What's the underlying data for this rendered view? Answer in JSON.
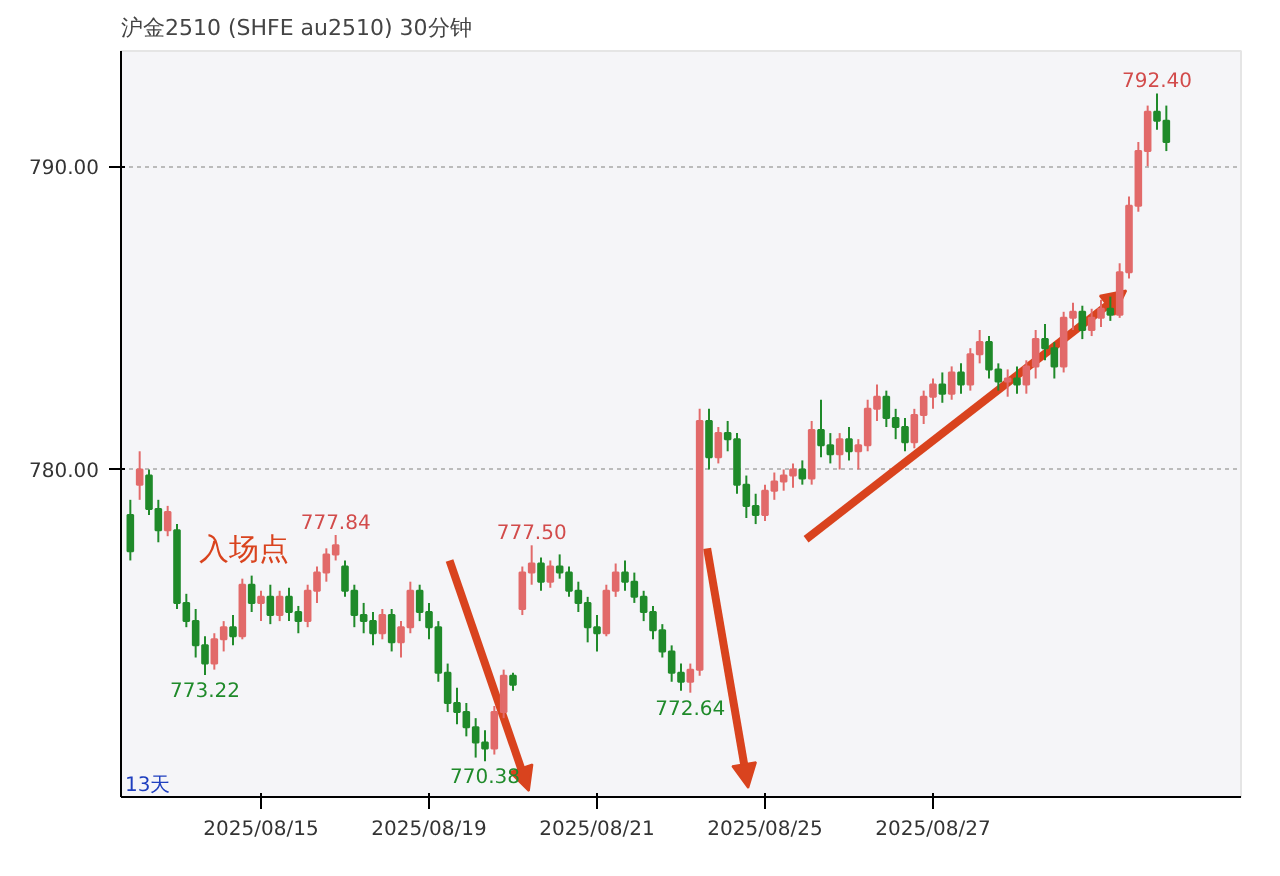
{
  "chart_data": {
    "type": "candlestick",
    "title": "沪金2510 (SHFE au2510) 30分钟",
    "categories": [
      null,
      null,
      null,
      null,
      null,
      null,
      null,
      null,
      null,
      null,
      null,
      null,
      null,
      null,
      "2025/08/15",
      null,
      null,
      null,
      null,
      null,
      null,
      null,
      null,
      null,
      null,
      null,
      null,
      null,
      null,
      null,
      null,
      null,
      "2025/08/19",
      null,
      null,
      null,
      null,
      null,
      null,
      null,
      null,
      null,
      null,
      null,
      null,
      null,
      null,
      null,
      null,
      null,
      "2025/08/21",
      null,
      null,
      null,
      null,
      null,
      null,
      null,
      null,
      null,
      null,
      null,
      null,
      null,
      null,
      null,
      null,
      null,
      "2025/08/25",
      null,
      null,
      null,
      null,
      null,
      null,
      null,
      null,
      null,
      null,
      null,
      null,
      null,
      null,
      null,
      null,
      null,
      "2025/08/27",
      null,
      null,
      null,
      null,
      null,
      null,
      null,
      null,
      null,
      null,
      null,
      null,
      null,
      null,
      null,
      null,
      null,
      null,
      null,
      null,
      null,
      null,
      null,
      null,
      null
    ],
    "ohlc": [
      [
        778.5,
        779.0,
        777.0,
        777.3
      ],
      [
        779.5,
        780.6,
        779.0,
        780.0
      ],
      [
        779.8,
        780.0,
        778.5,
        778.7
      ],
      [
        778.7,
        779.0,
        777.6,
        778.0
      ],
      [
        778.0,
        778.8,
        777.8,
        778.6
      ],
      [
        778.0,
        778.2,
        775.4,
        775.6
      ],
      [
        775.6,
        775.9,
        774.8,
        775.0
      ],
      [
        775.0,
        775.4,
        773.8,
        774.2
      ],
      [
        774.2,
        774.5,
        773.22,
        773.6
      ],
      [
        773.6,
        774.6,
        773.4,
        774.4
      ],
      [
        774.4,
        775.0,
        774.0,
        774.8
      ],
      [
        774.8,
        775.2,
        774.2,
        774.5
      ],
      [
        774.5,
        776.4,
        774.4,
        776.2
      ],
      [
        776.2,
        776.5,
        775.3,
        775.6
      ],
      [
        775.6,
        776.0,
        775.0,
        775.8
      ],
      [
        775.8,
        776.2,
        774.9,
        775.2
      ],
      [
        775.2,
        776.0,
        775.0,
        775.8
      ],
      [
        775.8,
        776.1,
        775.0,
        775.3
      ],
      [
        775.3,
        775.5,
        774.6,
        775.0
      ],
      [
        775.0,
        776.2,
        774.8,
        776.0
      ],
      [
        776.0,
        776.8,
        775.6,
        776.6
      ],
      [
        776.6,
        777.4,
        776.3,
        777.2
      ],
      [
        777.2,
        777.84,
        777.0,
        777.5
      ],
      [
        776.8,
        777.0,
        775.8,
        776.0
      ],
      [
        776.0,
        776.2,
        774.8,
        775.2
      ],
      [
        775.2,
        775.6,
        774.6,
        775.0
      ],
      [
        775.0,
        775.3,
        774.2,
        774.6
      ],
      [
        774.6,
        775.4,
        774.4,
        775.2
      ],
      [
        775.2,
        775.4,
        774.0,
        774.3
      ],
      [
        774.3,
        775.0,
        773.8,
        774.8
      ],
      [
        774.8,
        776.3,
        774.6,
        776.0
      ],
      [
        776.0,
        776.2,
        775.0,
        775.3
      ],
      [
        775.3,
        775.6,
        774.4,
        774.8
      ],
      [
        774.8,
        775.0,
        773.0,
        773.3
      ],
      [
        773.3,
        773.6,
        772.0,
        772.3
      ],
      [
        772.3,
        772.8,
        771.6,
        772.0
      ],
      [
        772.0,
        772.3,
        771.2,
        771.5
      ],
      [
        771.5,
        771.8,
        770.5,
        771.0
      ],
      [
        771.0,
        771.4,
        770.38,
        770.8
      ],
      [
        770.8,
        772.2,
        770.6,
        772.0
      ],
      [
        772.0,
        773.4,
        771.8,
        773.2
      ],
      [
        773.2,
        773.3,
        772.7,
        772.9
      ],
      [
        775.4,
        776.8,
        775.2,
        776.6
      ],
      [
        776.6,
        777.5,
        776.2,
        776.9
      ],
      [
        776.9,
        777.1,
        776.0,
        776.3
      ],
      [
        776.3,
        777.0,
        776.1,
        776.8
      ],
      [
        776.8,
        777.2,
        776.4,
        776.6
      ],
      [
        776.6,
        776.8,
        775.8,
        776.0
      ],
      [
        776.0,
        776.3,
        775.3,
        775.6
      ],
      [
        775.6,
        775.8,
        774.3,
        774.8
      ],
      [
        774.8,
        775.2,
        774.0,
        774.6
      ],
      [
        774.6,
        776.2,
        774.5,
        776.0
      ],
      [
        776.0,
        776.9,
        775.8,
        776.6
      ],
      [
        776.6,
        777.0,
        776.0,
        776.3
      ],
      [
        776.3,
        776.6,
        775.6,
        775.8
      ],
      [
        775.8,
        776.0,
        775.0,
        775.3
      ],
      [
        775.3,
        775.5,
        774.4,
        774.7
      ],
      [
        774.7,
        774.9,
        773.8,
        774.0
      ],
      [
        774.0,
        774.2,
        773.0,
        773.3
      ],
      [
        773.3,
        773.6,
        772.7,
        773.0
      ],
      [
        773.0,
        773.6,
        772.64,
        773.4
      ],
      [
        773.4,
        782.0,
        773.2,
        781.6
      ],
      [
        781.6,
        782.0,
        780.0,
        780.4
      ],
      [
        780.4,
        781.4,
        780.2,
        781.2
      ],
      [
        781.2,
        781.6,
        780.6,
        781.0
      ],
      [
        781.0,
        781.2,
        779.2,
        779.5
      ],
      [
        779.5,
        779.8,
        778.4,
        778.8
      ],
      [
        778.8,
        779.2,
        778.2,
        778.5
      ],
      [
        778.5,
        779.5,
        778.3,
        779.3
      ],
      [
        779.3,
        779.9,
        779.0,
        779.6
      ],
      [
        779.6,
        780.0,
        779.3,
        779.8
      ],
      [
        779.8,
        780.2,
        779.4,
        780.0
      ],
      [
        780.0,
        780.3,
        779.5,
        779.7
      ],
      [
        779.7,
        781.6,
        779.5,
        781.3
      ],
      [
        781.3,
        782.3,
        780.4,
        780.8
      ],
      [
        780.8,
        781.2,
        780.2,
        780.5
      ],
      [
        780.5,
        781.2,
        780.0,
        781.0
      ],
      [
        781.0,
        781.4,
        780.3,
        780.6
      ],
      [
        780.6,
        781.0,
        780.0,
        780.8
      ],
      [
        780.8,
        782.3,
        780.6,
        782.0
      ],
      [
        782.0,
        782.8,
        781.6,
        782.4
      ],
      [
        782.4,
        782.6,
        781.4,
        781.7
      ],
      [
        781.7,
        782.0,
        781.0,
        781.4
      ],
      [
        781.4,
        781.7,
        780.6,
        780.9
      ],
      [
        780.9,
        782.0,
        780.7,
        781.8
      ],
      [
        781.8,
        782.6,
        781.5,
        782.4
      ],
      [
        782.4,
        783.0,
        782.0,
        782.8
      ],
      [
        782.8,
        783.2,
        782.2,
        782.5
      ],
      [
        782.5,
        783.4,
        782.3,
        783.2
      ],
      [
        783.2,
        783.5,
        782.5,
        782.8
      ],
      [
        782.8,
        784.0,
        782.6,
        783.8
      ],
      [
        783.8,
        784.6,
        783.5,
        784.2
      ],
      [
        784.2,
        784.4,
        783.0,
        783.3
      ],
      [
        783.3,
        783.5,
        782.6,
        782.9
      ],
      [
        782.9,
        783.3,
        782.4,
        783.0
      ],
      [
        783.0,
        783.4,
        782.5,
        782.8
      ],
      [
        782.8,
        783.6,
        782.5,
        783.4
      ],
      [
        783.4,
        784.6,
        783.0,
        784.3
      ],
      [
        784.3,
        784.8,
        783.6,
        784.0
      ],
      [
        784.0,
        784.2,
        783.0,
        783.4
      ],
      [
        783.4,
        785.2,
        783.2,
        785.0
      ],
      [
        785.0,
        785.5,
        784.6,
        785.2
      ],
      [
        785.2,
        785.4,
        784.3,
        784.6
      ],
      [
        784.6,
        785.3,
        784.4,
        785.0
      ],
      [
        785.0,
        785.6,
        784.7,
        785.3
      ],
      [
        785.3,
        785.7,
        784.9,
        785.1
      ],
      [
        785.1,
        786.8,
        785.0,
        786.5
      ],
      [
        786.5,
        789.0,
        786.3,
        788.7
      ],
      [
        788.7,
        790.8,
        788.5,
        790.5
      ],
      [
        790.5,
        792.0,
        790.0,
        791.8
      ],
      [
        791.8,
        792.4,
        791.2,
        791.5
      ],
      [
        791.5,
        792.0,
        790.5,
        790.8
      ]
    ],
    "ylim": [
      769.2,
      793.8
    ],
    "yticks": [
      {
        "value": 780,
        "label": "780.00"
      },
      {
        "value": 790,
        "label": "790.00"
      }
    ],
    "grid": "y",
    "annotations": [
      {
        "text": "792.40",
        "y": 792.4
      },
      {
        "text": "777.84",
        "y": 777.84
      },
      {
        "text": "777.50",
        "y": 777.5
      },
      {
        "text": "773.22",
        "y": 773.22
      },
      {
        "text": "770.38",
        "y": 770.38
      },
      {
        "text": "772.64",
        "y": 772.64
      },
      "入场点",
      "13天"
    ]
  }
}
